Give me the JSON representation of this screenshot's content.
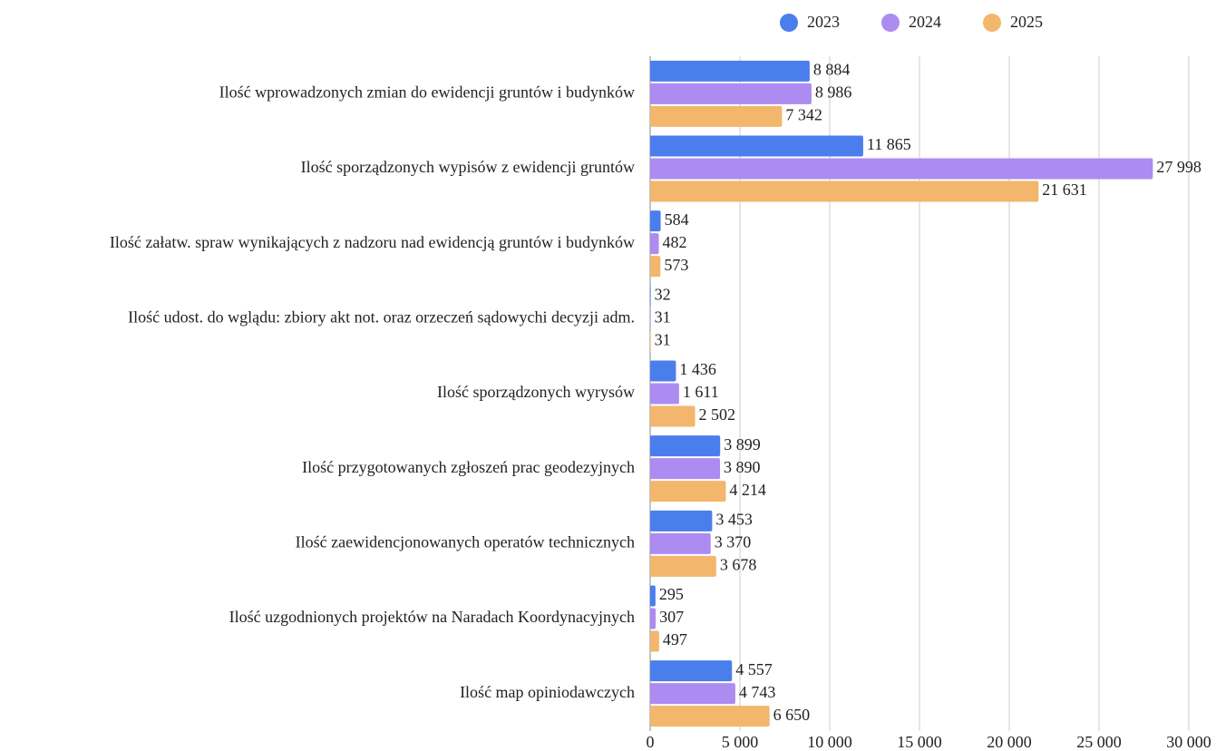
{
  "chart_data": {
    "type": "bar",
    "orientation": "horizontal",
    "categories": [
      "Ilość wprowadzonych zmian do ewidencji gruntów i budynków",
      "Ilość sporządzonych wypisów z ewidencji gruntów",
      "Ilość załatw. spraw wynikających z nadzoru nad ewidencją gruntów i budynków",
      "Ilość udost. do wglądu: zbiory akt not. oraz orzeczeń sądowychi decyzji adm.",
      "Ilość sporządzonych wyrysów",
      "Ilość przygotowanych zgłoszeń prac geodezyjnych",
      "Ilość zaewidencjonowanych operatów technicznych",
      "Ilość uzgodnionych projektów na Naradach Koordynacyjnych",
      "Ilość map opiniodawczych"
    ],
    "series": [
      {
        "name": "2023",
        "color": "#4a7eed",
        "values": [
          8884,
          11865,
          584,
          32,
          1436,
          3899,
          3453,
          295,
          4557
        ],
        "value_labels": [
          "8 884",
          "11 865",
          "584",
          "32",
          "1 436",
          "3 899",
          "3 453",
          "295",
          "4 557"
        ]
      },
      {
        "name": "2024",
        "color": "#ac8cf0",
        "values": [
          8986,
          27998,
          482,
          31,
          1611,
          3890,
          3370,
          307,
          4743
        ],
        "value_labels": [
          "8 986",
          "27 998",
          "482",
          "31",
          "1 611",
          "3 890",
          "3 370",
          "307",
          "4 743"
        ]
      },
      {
        "name": "2025",
        "color": "#f2b76c",
        "values": [
          7342,
          21631,
          573,
          31,
          2502,
          4214,
          3678,
          497,
          6650
        ],
        "value_labels": [
          "7 342",
          "21 631",
          "573",
          "31",
          "2 502",
          "4 214",
          "3 678",
          "497",
          "6 650"
        ]
      }
    ],
    "xlim": [
      0,
      30000
    ],
    "xticks": [
      0,
      {
        "value": 5000,
        "label": "5 000"
      },
      {
        "value": 10000,
        "label": "10 000"
      },
      {
        "value": 15000,
        "label": "15 000"
      },
      {
        "value": 20000,
        "label": "20 000"
      },
      {
        "value": 25000,
        "label": "25 000"
      },
      {
        "value": 30000,
        "label": "30 000"
      }
    ],
    "grid": true,
    "legend": "top"
  }
}
